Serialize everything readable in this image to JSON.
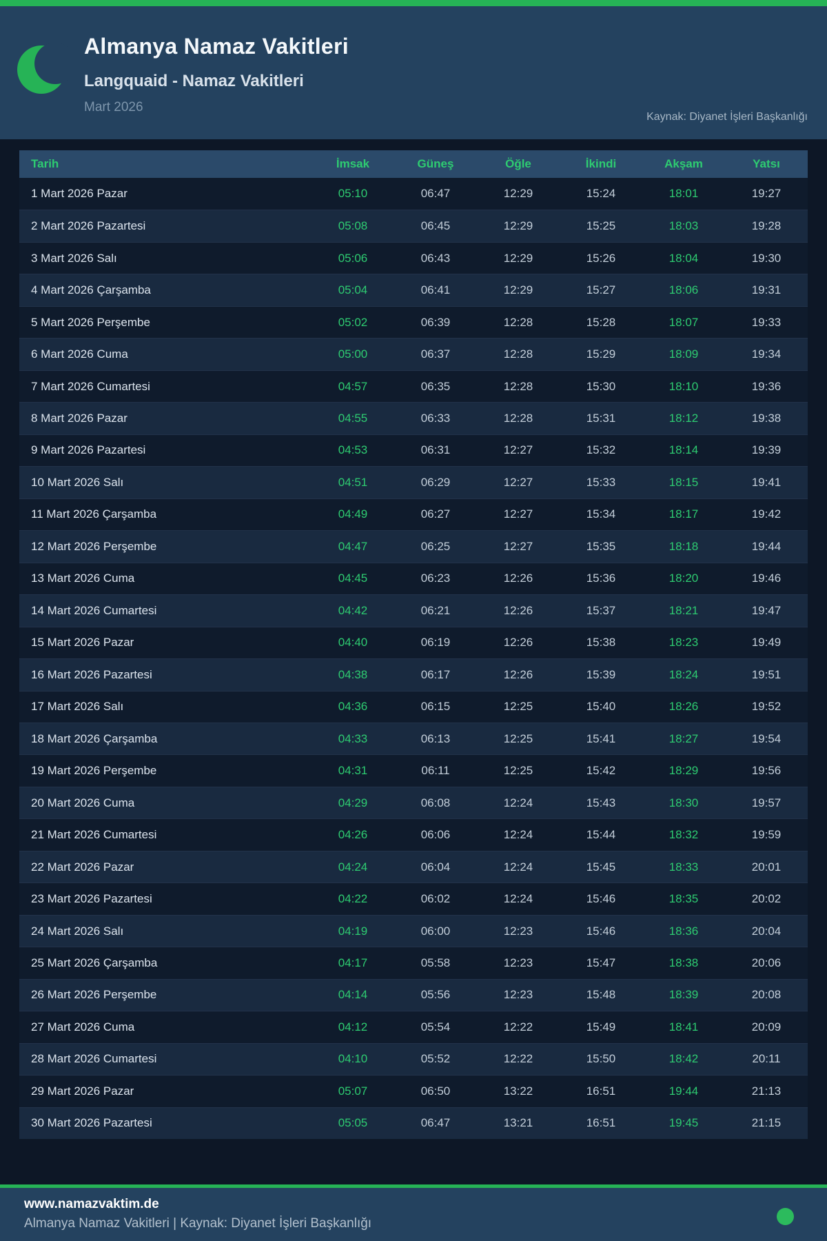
{
  "colors": {
    "brand_green": "#26b356",
    "accent_green": "#2ecc71",
    "header_navy": "#24425f",
    "table_header_blue": "#2b4a6a",
    "page_dark": "#0d1726"
  },
  "header": {
    "title": "Almanya Namaz Vakitleri",
    "subtitle": "Langquaid - Namaz Vakitleri",
    "period": "Mart 2026",
    "source": "Kaynak: Diyanet İşleri Başkanlığı",
    "moon_icon": "crescent-moon-icon"
  },
  "table": {
    "columns": [
      "Tarih",
      "İmsak",
      "Güneş",
      "Öğle",
      "İkindi",
      "Akşam",
      "Yatsı"
    ],
    "column_keys": [
      "tarih",
      "imsak",
      "gunes",
      "ogle",
      "ikindi",
      "aksam",
      "yatsi"
    ],
    "green_columns": [
      1,
      5
    ],
    "rows": [
      [
        "1 Mart 2026 Pazar",
        "05:10",
        "06:47",
        "12:29",
        "15:24",
        "18:01",
        "19:27"
      ],
      [
        "2 Mart 2026 Pazartesi",
        "05:08",
        "06:45",
        "12:29",
        "15:25",
        "18:03",
        "19:28"
      ],
      [
        "3 Mart 2026 Salı",
        "05:06",
        "06:43",
        "12:29",
        "15:26",
        "18:04",
        "19:30"
      ],
      [
        "4 Mart 2026 Çarşamba",
        "05:04",
        "06:41",
        "12:29",
        "15:27",
        "18:06",
        "19:31"
      ],
      [
        "5 Mart 2026 Perşembe",
        "05:02",
        "06:39",
        "12:28",
        "15:28",
        "18:07",
        "19:33"
      ],
      [
        "6 Mart 2026 Cuma",
        "05:00",
        "06:37",
        "12:28",
        "15:29",
        "18:09",
        "19:34"
      ],
      [
        "7 Mart 2026 Cumartesi",
        "04:57",
        "06:35",
        "12:28",
        "15:30",
        "18:10",
        "19:36"
      ],
      [
        "8 Mart 2026 Pazar",
        "04:55",
        "06:33",
        "12:28",
        "15:31",
        "18:12",
        "19:38"
      ],
      [
        "9 Mart 2026 Pazartesi",
        "04:53",
        "06:31",
        "12:27",
        "15:32",
        "18:14",
        "19:39"
      ],
      [
        "10 Mart 2026 Salı",
        "04:51",
        "06:29",
        "12:27",
        "15:33",
        "18:15",
        "19:41"
      ],
      [
        "11 Mart 2026 Çarşamba",
        "04:49",
        "06:27",
        "12:27",
        "15:34",
        "18:17",
        "19:42"
      ],
      [
        "12 Mart 2026 Perşembe",
        "04:47",
        "06:25",
        "12:27",
        "15:35",
        "18:18",
        "19:44"
      ],
      [
        "13 Mart 2026 Cuma",
        "04:45",
        "06:23",
        "12:26",
        "15:36",
        "18:20",
        "19:46"
      ],
      [
        "14 Mart 2026 Cumartesi",
        "04:42",
        "06:21",
        "12:26",
        "15:37",
        "18:21",
        "19:47"
      ],
      [
        "15 Mart 2026 Pazar",
        "04:40",
        "06:19",
        "12:26",
        "15:38",
        "18:23",
        "19:49"
      ],
      [
        "16 Mart 2026 Pazartesi",
        "04:38",
        "06:17",
        "12:26",
        "15:39",
        "18:24",
        "19:51"
      ],
      [
        "17 Mart 2026 Salı",
        "04:36",
        "06:15",
        "12:25",
        "15:40",
        "18:26",
        "19:52"
      ],
      [
        "18 Mart 2026 Çarşamba",
        "04:33",
        "06:13",
        "12:25",
        "15:41",
        "18:27",
        "19:54"
      ],
      [
        "19 Mart 2026 Perşembe",
        "04:31",
        "06:11",
        "12:25",
        "15:42",
        "18:29",
        "19:56"
      ],
      [
        "20 Mart 2026 Cuma",
        "04:29",
        "06:08",
        "12:24",
        "15:43",
        "18:30",
        "19:57"
      ],
      [
        "21 Mart 2026 Cumartesi",
        "04:26",
        "06:06",
        "12:24",
        "15:44",
        "18:32",
        "19:59"
      ],
      [
        "22 Mart 2026 Pazar",
        "04:24",
        "06:04",
        "12:24",
        "15:45",
        "18:33",
        "20:01"
      ],
      [
        "23 Mart 2026 Pazartesi",
        "04:22",
        "06:02",
        "12:24",
        "15:46",
        "18:35",
        "20:02"
      ],
      [
        "24 Mart 2026 Salı",
        "04:19",
        "06:00",
        "12:23",
        "15:46",
        "18:36",
        "20:04"
      ],
      [
        "25 Mart 2026 Çarşamba",
        "04:17",
        "05:58",
        "12:23",
        "15:47",
        "18:38",
        "20:06"
      ],
      [
        "26 Mart 2026 Perşembe",
        "04:14",
        "05:56",
        "12:23",
        "15:48",
        "18:39",
        "20:08"
      ],
      [
        "27 Mart 2026 Cuma",
        "04:12",
        "05:54",
        "12:22",
        "15:49",
        "18:41",
        "20:09"
      ],
      [
        "28 Mart 2026 Cumartesi",
        "04:10",
        "05:52",
        "12:22",
        "15:50",
        "18:42",
        "20:11"
      ],
      [
        "29 Mart 2026 Pazar",
        "05:07",
        "06:50",
        "13:22",
        "16:51",
        "19:44",
        "21:13"
      ],
      [
        "30 Mart 2026 Pazartesi",
        "05:05",
        "06:47",
        "13:21",
        "16:51",
        "19:45",
        "21:15"
      ]
    ]
  },
  "footer": {
    "site": "www.namazvaktim.de",
    "tagline": "Almanya Namaz Vakitleri | Kaynak: Diyanet İşleri Başkanlığı",
    "dot_icon": "green-dot-icon"
  }
}
